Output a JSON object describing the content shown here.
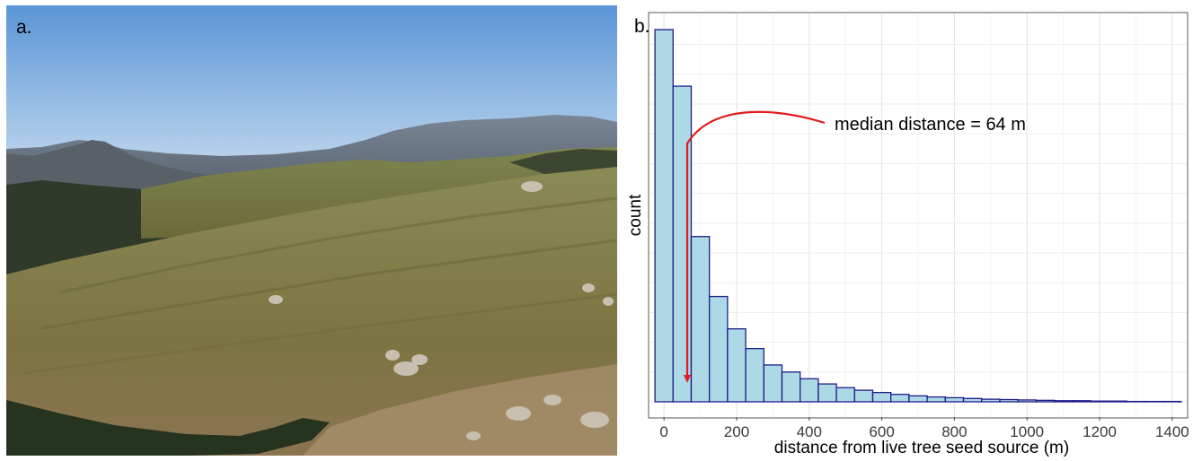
{
  "panels": {
    "a": {
      "label": "a."
    },
    "b": {
      "label": "b."
    }
  },
  "chart_data": {
    "type": "bar",
    "title": "",
    "xlabel": "distance from live tree seed source (m)",
    "ylabel": "count",
    "xlim": [
      -40,
      1440
    ],
    "ylim": [
      0,
      1
    ],
    "bin_width": 50,
    "x_ticks": [
      0,
      200,
      400,
      600,
      800,
      1000,
      1200,
      1400
    ],
    "y_tick_labels_shown": false,
    "grid": true,
    "colors": {
      "fill": "#add8e6",
      "edge": "#1f1d8a",
      "annotation": "#e41a1c"
    },
    "bins_start": [
      -25,
      25,
      75,
      125,
      175,
      225,
      275,
      325,
      375,
      425,
      475,
      525,
      575,
      625,
      675,
      725,
      775,
      825,
      875,
      925,
      975,
      1025,
      1075,
      1125,
      1175,
      1225,
      1275,
      1325,
      1375
    ],
    "values": [
      1.0,
      0.848,
      0.444,
      0.283,
      0.196,
      0.143,
      0.099,
      0.08,
      0.062,
      0.048,
      0.038,
      0.031,
      0.025,
      0.02,
      0.016,
      0.013,
      0.011,
      0.009,
      0.007,
      0.006,
      0.005,
      0.004,
      0.003,
      0.003,
      0.002,
      0.002,
      0.001,
      0.001,
      0.001
    ],
    "annotation": {
      "text": "median distance = 64 m",
      "x_value": 64
    }
  }
}
